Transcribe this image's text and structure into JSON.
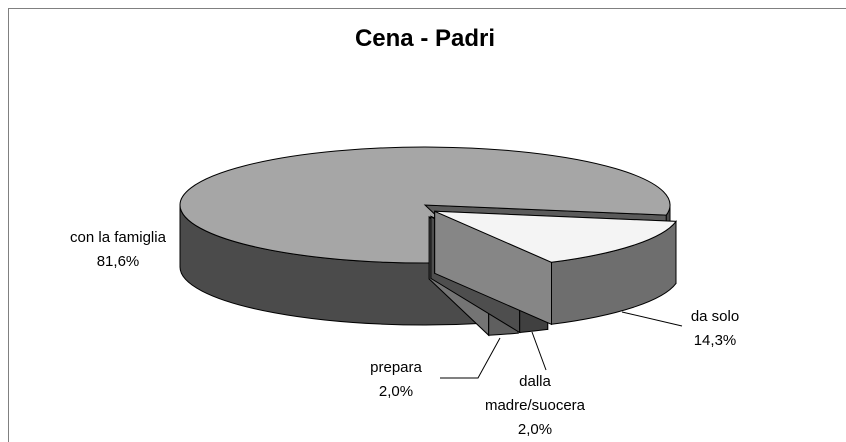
{
  "chart_data": {
    "type": "pie",
    "title": "Cena - Padri",
    "categories": [
      "da solo",
      "dalla madre/suocera",
      "prepara",
      "con la famiglia"
    ],
    "values": [
      14.3,
      2.0,
      2.0,
      81.6
    ],
    "value_labels": [
      "14,3%",
      "2,0%",
      "2,0%",
      "81,6%"
    ],
    "colors": [
      "#f4f4f4",
      "#8e8e8e",
      "#d2d2d2",
      "#a6a6a6"
    ]
  }
}
